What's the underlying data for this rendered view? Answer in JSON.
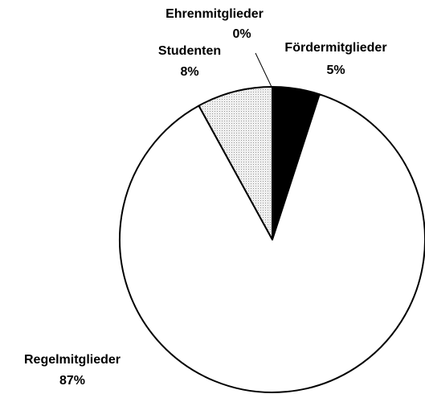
{
  "chart_data": {
    "type": "pie",
    "categories": [
      "Fördermitglieder",
      "Regelmitglieder",
      "Studenten",
      "Ehrenmitglieder"
    ],
    "values": [
      5,
      87,
      8,
      0
    ],
    "value_labels": [
      "5%",
      "87%",
      "8%",
      "0%"
    ],
    "colors": [
      "#000000",
      "#ffffff",
      "#e4e4e4",
      "#ffffff"
    ]
  }
}
